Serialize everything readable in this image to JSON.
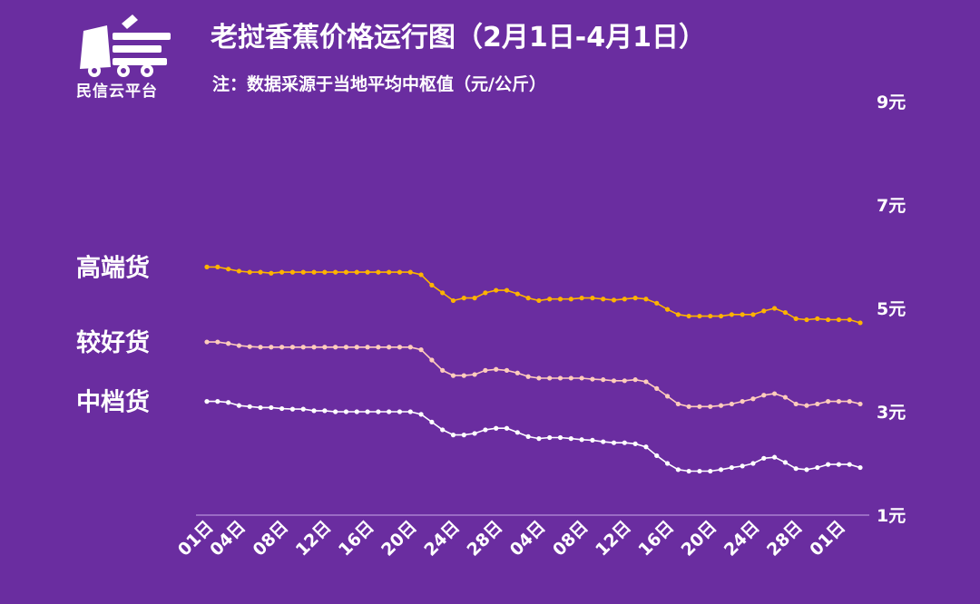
{
  "brand": {
    "name": "民信云平台",
    "logo_icon": "truck-logo-icon"
  },
  "title": "老挝香蕉价格运行图（2月1日-4月1日）",
  "subtitle": "注：数据采源于当地平均中枢值（元/公斤）",
  "chart_data": {
    "type": "line",
    "title": "老挝香蕉价格运行图（2月1日-4月1日）",
    "subtitle": "注：数据采源于当地平均中枢值（元/公斤）",
    "ylabel": "",
    "xlabel": "",
    "ylim": [
      1,
      9
    ],
    "yticks": [
      1,
      3,
      5,
      7,
      9
    ],
    "ytick_labels": [
      "1元",
      "3元",
      "5元",
      "7元",
      "9元"
    ],
    "xtick_labels": [
      "01日",
      "04日",
      "08日",
      "12日",
      "16日",
      "20日",
      "24日",
      "28日",
      "04日",
      "08日",
      "12日",
      "16日",
      "20日",
      "24日",
      "28日",
      "01日"
    ],
    "xtick_index": [
      0,
      3,
      7,
      11,
      15,
      19,
      23,
      27,
      31,
      35,
      39,
      43,
      47,
      51,
      55,
      59
    ],
    "grid": false,
    "legend": "left, inline labels",
    "series": [
      {
        "name": "高端货",
        "color": "#FFB300",
        "values": [
          5.8,
          5.8,
          5.76,
          5.72,
          5.7,
          5.7,
          5.68,
          5.7,
          5.7,
          5.7,
          5.7,
          5.7,
          5.7,
          5.7,
          5.7,
          5.7,
          5.7,
          5.7,
          5.7,
          5.7,
          5.65,
          5.45,
          5.3,
          5.15,
          5.2,
          5.2,
          5.3,
          5.35,
          5.35,
          5.28,
          5.2,
          5.15,
          5.18,
          5.18,
          5.18,
          5.2,
          5.2,
          5.18,
          5.16,
          5.18,
          5.2,
          5.18,
          5.1,
          4.98,
          4.88,
          4.85,
          4.85,
          4.85,
          4.85,
          4.88,
          4.88,
          4.88,
          4.95,
          5.0,
          4.92,
          4.8,
          4.78,
          4.8,
          4.78,
          4.78,
          4.78,
          4.72
        ]
      },
      {
        "name": "较好货",
        "color": "#FFCCBC",
        "values": [
          4.35,
          4.35,
          4.32,
          4.28,
          4.26,
          4.25,
          4.25,
          4.25,
          4.25,
          4.25,
          4.25,
          4.25,
          4.25,
          4.25,
          4.25,
          4.25,
          4.25,
          4.25,
          4.25,
          4.25,
          4.2,
          4.0,
          3.8,
          3.7,
          3.7,
          3.72,
          3.8,
          3.82,
          3.8,
          3.75,
          3.68,
          3.65,
          3.65,
          3.65,
          3.65,
          3.65,
          3.63,
          3.62,
          3.6,
          3.6,
          3.62,
          3.58,
          3.45,
          3.3,
          3.15,
          3.1,
          3.1,
          3.1,
          3.12,
          3.15,
          3.2,
          3.25,
          3.32,
          3.35,
          3.28,
          3.15,
          3.12,
          3.15,
          3.2,
          3.2,
          3.2,
          3.15
        ]
      },
      {
        "name": "中档货",
        "color": "#FFFFFF",
        "values": [
          3.2,
          3.2,
          3.18,
          3.12,
          3.1,
          3.08,
          3.08,
          3.06,
          3.05,
          3.05,
          3.02,
          3.02,
          3.0,
          3.0,
          3.0,
          3.0,
          3.0,
          3.0,
          3.0,
          3.0,
          2.95,
          2.8,
          2.65,
          2.55,
          2.55,
          2.58,
          2.65,
          2.68,
          2.68,
          2.6,
          2.52,
          2.48,
          2.5,
          2.5,
          2.48,
          2.46,
          2.45,
          2.42,
          2.4,
          2.4,
          2.38,
          2.32,
          2.15,
          2.0,
          1.88,
          1.85,
          1.85,
          1.85,
          1.88,
          1.92,
          1.95,
          2.0,
          2.1,
          2.12,
          2.02,
          1.9,
          1.88,
          1.92,
          1.98,
          1.98,
          1.98,
          1.92
        ]
      }
    ]
  }
}
